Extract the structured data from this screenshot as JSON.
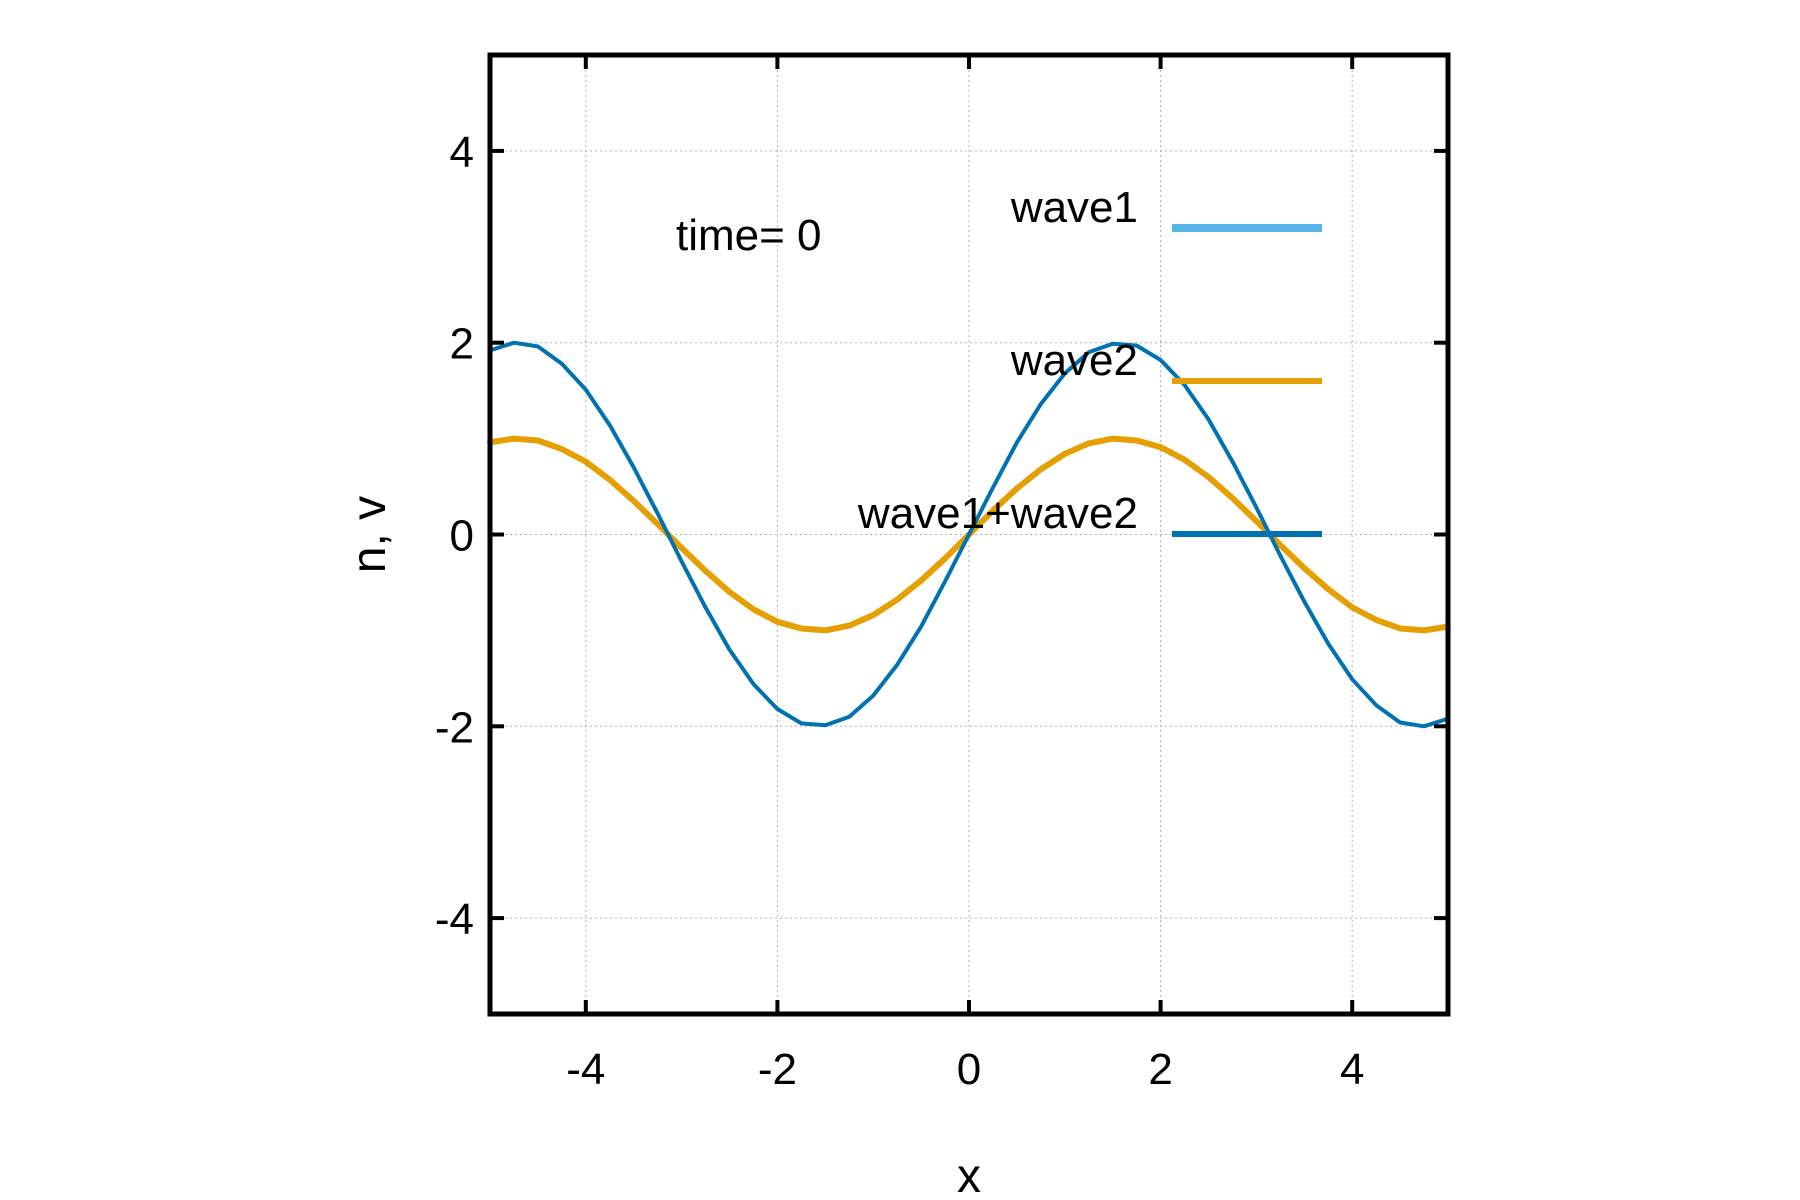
{
  "chart_data": {
    "type": "line",
    "xlabel": "x",
    "ylabel": "n, v",
    "xlim": [
      -5,
      5
    ],
    "ylim": [
      -5,
      5
    ],
    "xticks": [
      -4,
      -2,
      0,
      2,
      4
    ],
    "yticks": [
      -4,
      -2,
      0,
      2,
      4
    ],
    "x_tick_labels": [
      "-4",
      "-2",
      "0",
      "2",
      "4"
    ],
    "y_tick_labels": [
      "-4",
      "-2",
      "0",
      "2",
      "4"
    ],
    "grid": true,
    "legend_position": "top-right",
    "annotation": "time=  0",
    "x": [
      -5,
      -4.75,
      -4.5,
      -4.25,
      -4,
      -3.75,
      -3.5,
      -3.25,
      -3,
      -2.75,
      -2.5,
      -2.25,
      -2,
      -1.75,
      -1.5,
      -1.25,
      -1,
      -0.75,
      -0.5,
      -0.25,
      0,
      0.25,
      0.5,
      0.75,
      1,
      1.25,
      1.5,
      1.75,
      2,
      2.25,
      2.5,
      2.75,
      3,
      3.25,
      3.5,
      3.75,
      4,
      4.25,
      4.5,
      4.75,
      5
    ],
    "series": [
      {
        "name": "wave1",
        "color": "#56b4e9",
        "values": [
          0.96,
          1.0,
          0.98,
          0.89,
          0.76,
          0.57,
          0.35,
          0.11,
          -0.14,
          -0.38,
          -0.6,
          -0.78,
          -0.91,
          -0.98,
          -1.0,
          -0.95,
          -0.84,
          -0.68,
          -0.48,
          -0.25,
          0.0,
          0.25,
          0.48,
          0.68,
          0.84,
          0.95,
          1.0,
          0.98,
          0.91,
          0.78,
          0.6,
          0.38,
          0.14,
          -0.11,
          -0.35,
          -0.57,
          -0.76,
          -0.89,
          -0.98,
          -1.0,
          -0.96
        ]
      },
      {
        "name": "wave2",
        "color": "#e69f00",
        "values": [
          0.96,
          1.0,
          0.98,
          0.89,
          0.76,
          0.57,
          0.35,
          0.11,
          -0.14,
          -0.38,
          -0.6,
          -0.78,
          -0.91,
          -0.98,
          -1.0,
          -0.95,
          -0.84,
          -0.68,
          -0.48,
          -0.25,
          0.0,
          0.25,
          0.48,
          0.68,
          0.84,
          0.95,
          1.0,
          0.98,
          0.91,
          0.78,
          0.6,
          0.38,
          0.14,
          -0.11,
          -0.35,
          -0.57,
          -0.76,
          -0.89,
          -0.98,
          -1.0,
          -0.96
        ]
      },
      {
        "name": "wave1+wave2",
        "color": "#0072b2",
        "values": [
          1.92,
          2.0,
          1.96,
          1.78,
          1.51,
          1.14,
          0.7,
          0.22,
          -0.28,
          -0.76,
          -1.2,
          -1.56,
          -1.82,
          -1.97,
          -1.99,
          -1.9,
          -1.68,
          -1.36,
          -0.96,
          -0.49,
          0.0,
          0.49,
          0.96,
          1.36,
          1.68,
          1.9,
          1.99,
          1.97,
          1.82,
          1.56,
          1.2,
          0.76,
          0.28,
          -0.22,
          -0.7,
          -1.14,
          -1.51,
          -1.78,
          -1.96,
          -2.0,
          -1.92
        ]
      }
    ]
  }
}
